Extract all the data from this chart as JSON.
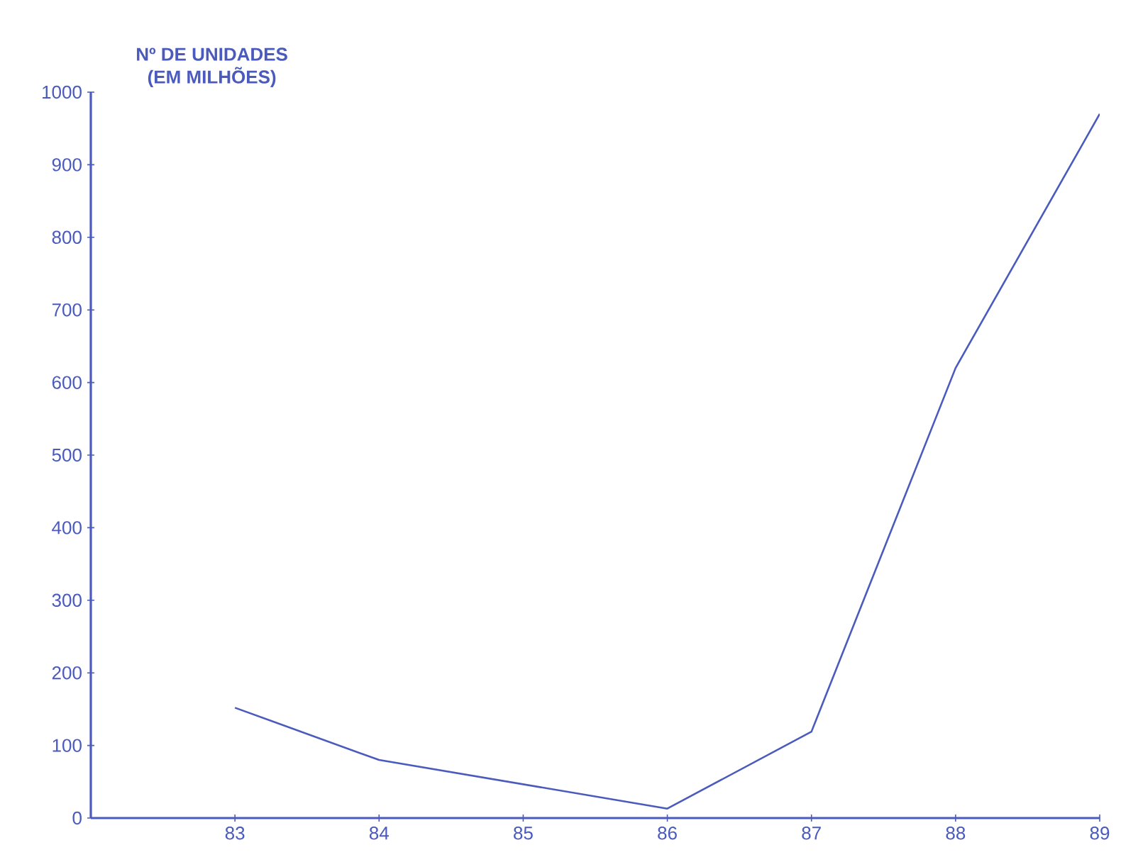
{
  "chart_data": {
    "type": "line",
    "ylabel": "Nº DE UNIDADES (EM MILHÕES)",
    "x": [
      83,
      84,
      86,
      87,
      88,
      89
    ],
    "series": [
      {
        "color": "#4a5bbd",
        "values": [
          152,
          80,
          13,
          119,
          620,
          970
        ]
      }
    ],
    "xlim": [
      82,
      89
    ],
    "ylim": [
      0,
      1000
    ],
    "xticks": [
      83,
      84,
      85,
      86,
      87,
      88,
      89
    ],
    "yticks": [
      0,
      100,
      200,
      300,
      400,
      500,
      600,
      700,
      800,
      900,
      1000
    ],
    "marker": "none",
    "line_style": "solid"
  }
}
